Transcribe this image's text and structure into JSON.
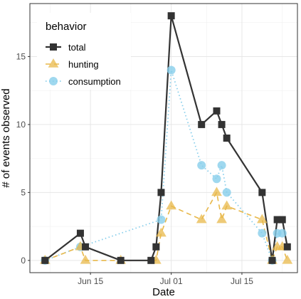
{
  "chart_data": {
    "type": "line",
    "xlabel": "Date",
    "ylabel": "# of events observed",
    "x_ticks": [
      "Jun 15",
      "Jul 01",
      "Jul 15"
    ],
    "x_tick_dates": [
      "2020-06-15",
      "2020-07-01",
      "2020-07-15"
    ],
    "xlim": [
      "2020-06-03",
      "2020-07-26"
    ],
    "y_ticks": [
      0,
      5,
      10,
      15
    ],
    "ylim": [
      -0.9,
      18.9
    ],
    "grid": true,
    "legend": {
      "title": "behavior",
      "position": "top-left"
    },
    "series": [
      {
        "name": "total",
        "color": "#333333",
        "marker": "square",
        "line": "solid",
        "points": [
          {
            "x": "2020-06-06",
            "y": 0
          },
          {
            "x": "2020-06-13",
            "y": 2
          },
          {
            "x": "2020-06-14",
            "y": 1
          },
          {
            "x": "2020-06-21",
            "y": 0
          },
          {
            "x": "2020-06-27",
            "y": 0
          },
          {
            "x": "2020-06-28",
            "y": 1
          },
          {
            "x": "2020-06-29",
            "y": 5
          },
          {
            "x": "2020-07-01",
            "y": 18
          },
          {
            "x": "2020-07-07",
            "y": 10
          },
          {
            "x": "2020-07-10",
            "y": 11
          },
          {
            "x": "2020-07-11",
            "y": 10
          },
          {
            "x": "2020-07-12",
            "y": 9
          },
          {
            "x": "2020-07-19",
            "y": 5
          },
          {
            "x": "2020-07-21",
            "y": 0
          },
          {
            "x": "2020-07-22",
            "y": 3
          },
          {
            "x": "2020-07-23",
            "y": 3
          },
          {
            "x": "2020-07-24",
            "y": 1
          }
        ]
      },
      {
        "name": "hunting",
        "color": "#E8B84A",
        "marker": "triangle",
        "line": "dashed",
        "points": [
          {
            "x": "2020-06-06",
            "y": 0
          },
          {
            "x": "2020-06-13",
            "y": 1
          },
          {
            "x": "2020-06-14",
            "y": 0
          },
          {
            "x": "2020-06-21",
            "y": 0
          },
          {
            "x": "2020-06-28",
            "y": 0
          },
          {
            "x": "2020-06-29",
            "y": 2
          },
          {
            "x": "2020-07-01",
            "y": 4
          },
          {
            "x": "2020-07-07",
            "y": 3
          },
          {
            "x": "2020-07-10",
            "y": 5
          },
          {
            "x": "2020-07-11",
            "y": 3
          },
          {
            "x": "2020-07-12",
            "y": 4
          },
          {
            "x": "2020-07-19",
            "y": 3
          },
          {
            "x": "2020-07-21",
            "y": 0
          },
          {
            "x": "2020-07-22",
            "y": 1
          },
          {
            "x": "2020-07-23",
            "y": 1
          },
          {
            "x": "2020-07-24",
            "y": 0
          }
        ]
      },
      {
        "name": "consumption",
        "color": "#87CEEB",
        "marker": "circle",
        "line": "dotted",
        "points": [
          {
            "x": "2020-06-06",
            "y": 0
          },
          {
            "x": "2020-06-13",
            "y": 1
          },
          {
            "x": "2020-06-29",
            "y": 3
          },
          {
            "x": "2020-07-01",
            "y": 14
          },
          {
            "x": "2020-07-07",
            "y": 7
          },
          {
            "x": "2020-07-10",
            "y": 6
          },
          {
            "x": "2020-07-11",
            "y": 7
          },
          {
            "x": "2020-07-12",
            "y": 5
          },
          {
            "x": "2020-07-19",
            "y": 2
          },
          {
            "x": "2020-07-21",
            "y": 0
          },
          {
            "x": "2020-07-22",
            "y": 2
          },
          {
            "x": "2020-07-23",
            "y": 2
          }
        ]
      }
    ]
  }
}
